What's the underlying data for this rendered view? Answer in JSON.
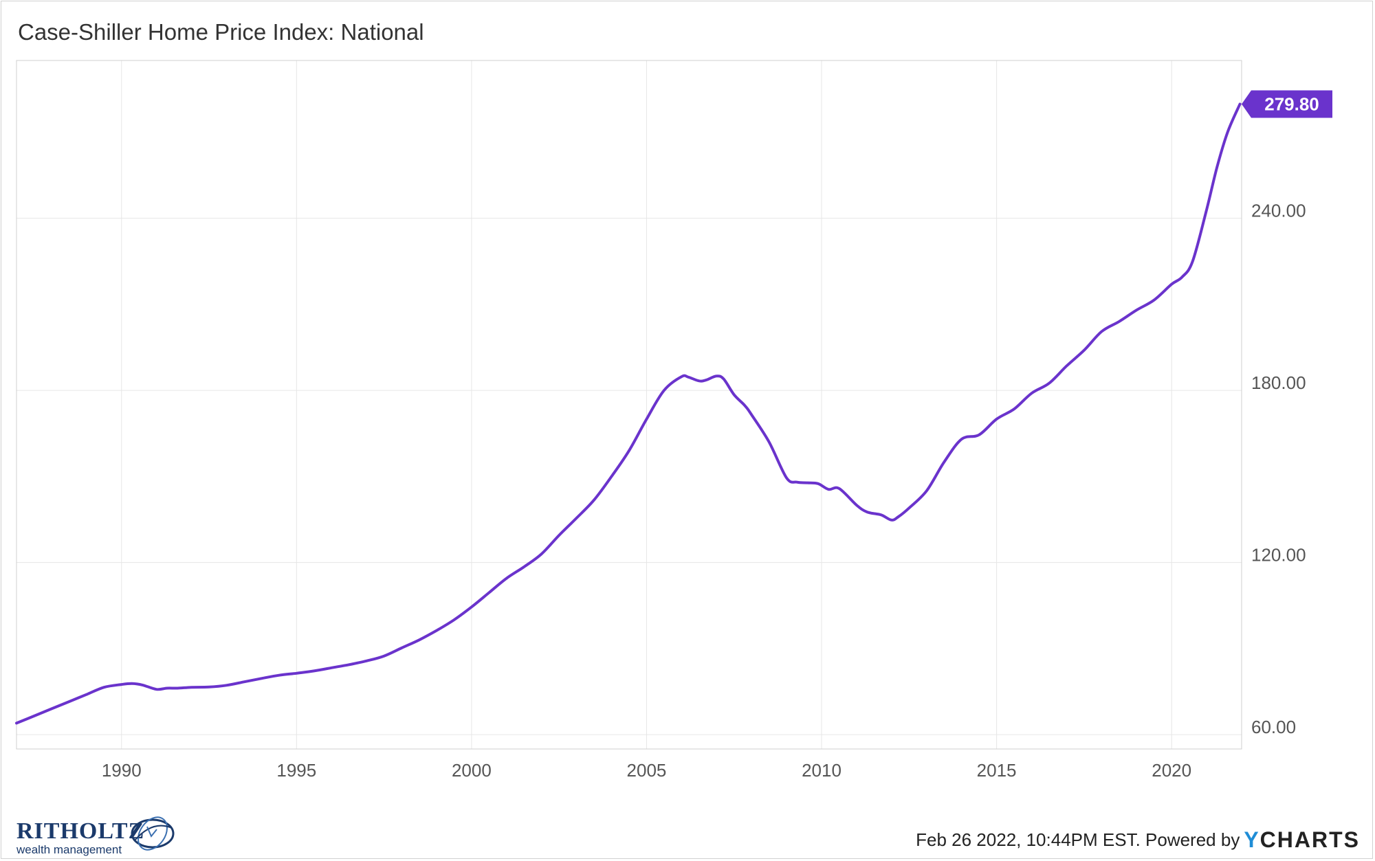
{
  "chart_data": {
    "type": "line",
    "title": "Case-Shiller Home Price Index: National",
    "xlabel": "",
    "ylabel": "",
    "x_ticks": [
      "1990",
      "1995",
      "2000",
      "2005",
      "2010",
      "2015",
      "2020"
    ],
    "y_ticks": [
      "60.00",
      "120.00",
      "180.00",
      "240.00"
    ],
    "xlim": [
      1987.0,
      2022.0
    ],
    "ylim": [
      55,
      295
    ],
    "grid": true,
    "last_value_label": "279.80",
    "series": [
      {
        "name": "",
        "color": "#6a33cc",
        "x": [
          1987.0,
          1987.5,
          1988.0,
          1988.5,
          1989.0,
          1989.5,
          1990.0,
          1990.3,
          1990.6,
          1991.0,
          1991.3,
          1991.6,
          1992.0,
          1992.5,
          1993.0,
          1993.5,
          1994.0,
          1994.5,
          1995.0,
          1995.5,
          1996.0,
          1996.5,
          1997.0,
          1997.5,
          1998.0,
          1998.5,
          1999.0,
          1999.5,
          2000.0,
          2000.5,
          2001.0,
          2001.5,
          2002.0,
          2002.5,
          2003.0,
          2003.5,
          2004.0,
          2004.5,
          2005.0,
          2005.5,
          2006.0,
          2006.2,
          2006.5,
          2006.7,
          2007.0,
          2007.2,
          2007.5,
          2007.8,
          2008.0,
          2008.5,
          2009.0,
          2009.3,
          2009.6,
          2009.9,
          2010.2,
          2010.5,
          2011.0,
          2011.3,
          2011.7,
          2012.0,
          2012.2,
          2012.5,
          2013.0,
          2013.5,
          2014.0,
          2014.5,
          2015.0,
          2015.5,
          2016.0,
          2016.5,
          2017.0,
          2017.5,
          2018.0,
          2018.5,
          2019.0,
          2019.5,
          2020.0,
          2020.3,
          2020.6,
          2021.0,
          2021.3,
          2021.6,
          2021.95
        ],
        "values": [
          64,
          66.5,
          69,
          71.5,
          74,
          76.5,
          77.5,
          77.8,
          77.3,
          75.8,
          76.2,
          76.2,
          76.5,
          76.6,
          77.2,
          78.4,
          79.6,
          80.7,
          81.4,
          82.2,
          83.3,
          84.4,
          85.7,
          87.4,
          90.2,
          93.0,
          96.3,
          100.0,
          104.5,
          109.5,
          114.5,
          118.5,
          123.0,
          129.5,
          135.5,
          141.8,
          150.0,
          159.0,
          170.0,
          180.0,
          184.8,
          184.6,
          183.3,
          183.6,
          185.0,
          184.0,
          178.5,
          174.8,
          171.5,
          162.0,
          149.5,
          148.0,
          147.8,
          147.5,
          145.5,
          145.8,
          140.0,
          137.6,
          136.6,
          134.8,
          136.0,
          139.0,
          145.0,
          155.0,
          163.0,
          164.5,
          170.0,
          173.5,
          179.0,
          182.5,
          188.5,
          194.0,
          200.5,
          204.0,
          208.0,
          211.5,
          217.0,
          219.5,
          225.0,
          243.0,
          258.0,
          270.0,
          279.8
        ]
      }
    ]
  },
  "footer": {
    "text": "Feb 26 2022, 10:44PM EST. Powered by",
    "logo_y": "Y",
    "logo_rest": "CHARTS"
  },
  "brand": {
    "name": "RITHOLTZ",
    "sub": "wealth management"
  }
}
